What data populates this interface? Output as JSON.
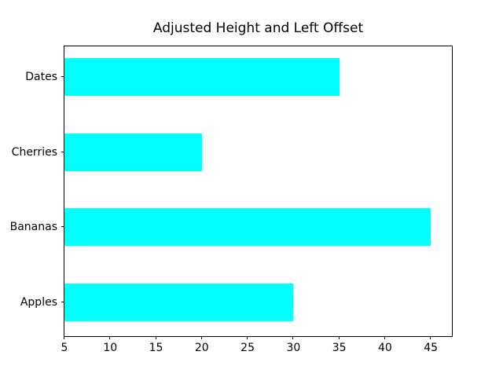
{
  "chart_data": {
    "type": "bar",
    "orientation": "horizontal",
    "title": "Adjusted Height and Left Offset",
    "categories": [
      "Dates",
      "Cherries",
      "Bananas",
      "Apples"
    ],
    "bar_left_offset": 5,
    "bar_end_values": [
      35,
      20,
      45,
      30
    ],
    "bar_lengths": [
      30,
      15,
      40,
      25
    ],
    "bar_color": "#00ffff",
    "xtick_labels": [
      "5",
      "10",
      "15",
      "20",
      "25",
      "30",
      "35",
      "40",
      "45"
    ],
    "xtick_values": [
      5,
      10,
      15,
      20,
      25,
      30,
      35,
      40,
      45
    ],
    "xlim": [
      5,
      47.3
    ],
    "xlabel": "",
    "ylabel": "",
    "grid": false,
    "axis_color": "#000000",
    "text_color": "#000000",
    "background_color": "#ffffff"
  }
}
